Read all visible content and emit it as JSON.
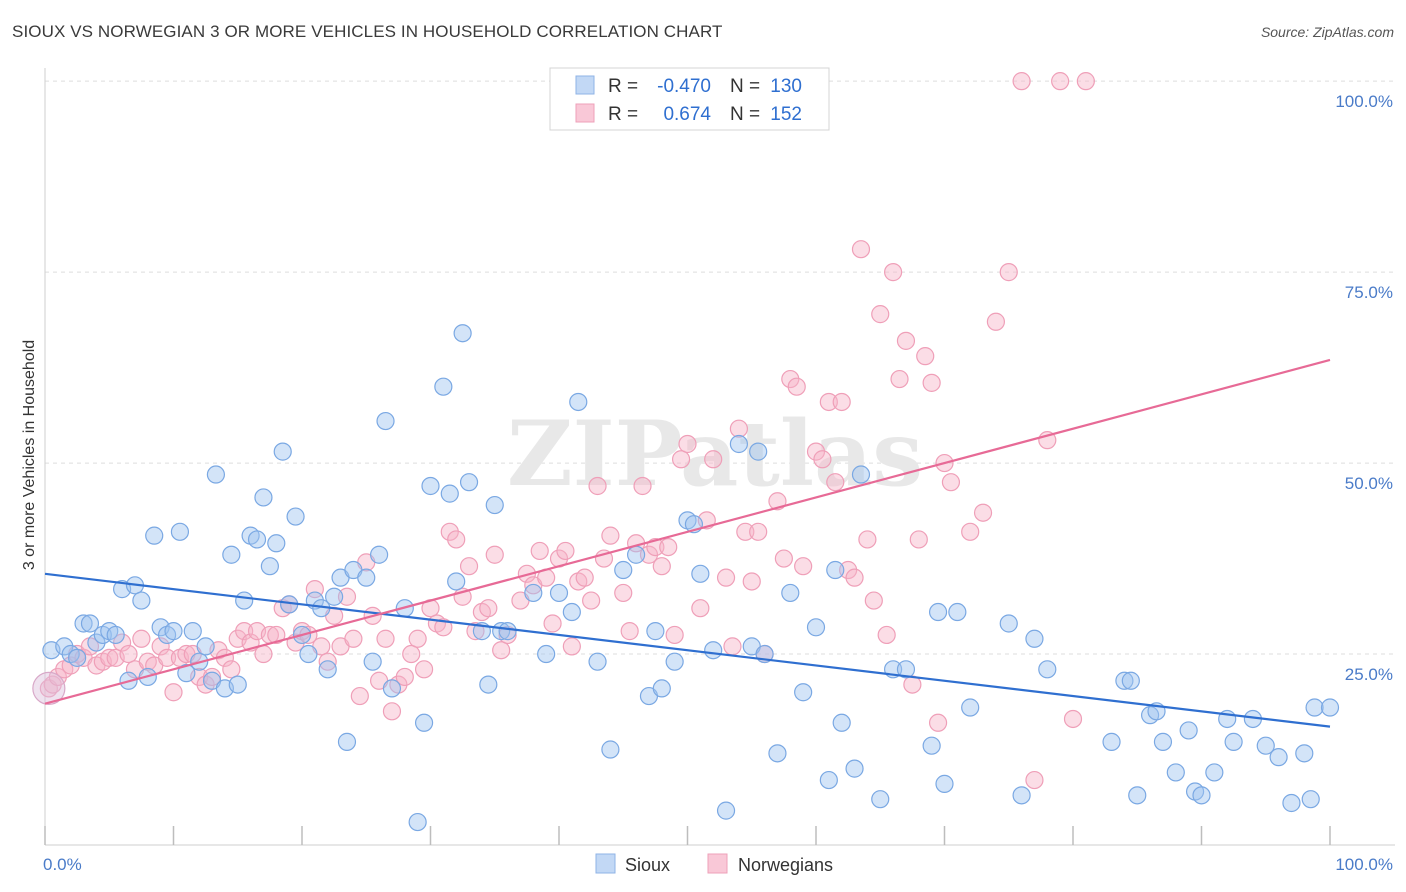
{
  "title": "SIOUX VS NORWEGIAN 3 OR MORE VEHICLES IN HOUSEHOLD CORRELATION CHART",
  "source": "Source: ZipAtlas.com",
  "watermark": "ZIPatlas",
  "chart_data": {
    "type": "scatter",
    "title": "SIOUX VS NORWEGIAN 3 OR MORE VEHICLES IN HOUSEHOLD CORRELATION CHART",
    "xlabel": "",
    "ylabel": "3 or more Vehicles in Household",
    "xlim": [
      0,
      100
    ],
    "ylim": [
      0,
      100
    ],
    "x_tick_labels": [
      "0.0%",
      "100.0%"
    ],
    "y_ticks": [
      25,
      50,
      75,
      100
    ],
    "y_tick_labels": [
      "25.0%",
      "50.0%",
      "75.0%",
      "100.0%"
    ],
    "grid": "horizontal dashed",
    "legend_position": "top-center",
    "series": [
      {
        "name": "Sioux",
        "color": "#9dc3f0",
        "line_color": "#2f6fd0",
        "R": "-0.470",
        "N": "130",
        "trend": [
          [
            0,
            35.5
          ],
          [
            100,
            15.5
          ]
        ],
        "points": [
          [
            0.5,
            25.5
          ],
          [
            1.5,
            26
          ],
          [
            2,
            25
          ],
          [
            2.5,
            24.5
          ],
          [
            3,
            29
          ],
          [
            3.5,
            29
          ],
          [
            4,
            26.5
          ],
          [
            4.5,
            27.5
          ],
          [
            5,
            28
          ],
          [
            5.5,
            27.5
          ],
          [
            6,
            33.5
          ],
          [
            6.5,
            21.5
          ],
          [
            7,
            34
          ],
          [
            7.5,
            32
          ],
          [
            8,
            22
          ],
          [
            8.5,
            40.5
          ],
          [
            9,
            28.5
          ],
          [
            9.5,
            27.5
          ],
          [
            10,
            28
          ],
          [
            10.5,
            41
          ],
          [
            11,
            22.5
          ],
          [
            11.5,
            28
          ],
          [
            12,
            24
          ],
          [
            12.5,
            26
          ],
          [
            13,
            21.5
          ],
          [
            13.3,
            48.5
          ],
          [
            14,
            20.5
          ],
          [
            14.5,
            38
          ],
          [
            15,
            21
          ],
          [
            15.5,
            32
          ],
          [
            16,
            40.5
          ],
          [
            16.5,
            40
          ],
          [
            17,
            45.5
          ],
          [
            17.5,
            36.5
          ],
          [
            18,
            39.5
          ],
          [
            18.5,
            51.5
          ],
          [
            19,
            31.5
          ],
          [
            19.5,
            43
          ],
          [
            20,
            27.5
          ],
          [
            20.5,
            25
          ],
          [
            21,
            32
          ],
          [
            21.5,
            31
          ],
          [
            22,
            23
          ],
          [
            22.5,
            32.5
          ],
          [
            23,
            35
          ],
          [
            23.5,
            13.5
          ],
          [
            24,
            36
          ],
          [
            25,
            35
          ],
          [
            25.5,
            24
          ],
          [
            26,
            38
          ],
          [
            26.5,
            55.5
          ],
          [
            27,
            20.5
          ],
          [
            28,
            31
          ],
          [
            29,
            3
          ],
          [
            29.5,
            16
          ],
          [
            30,
            47
          ],
          [
            31,
            60
          ],
          [
            31.5,
            46
          ],
          [
            32,
            34.5
          ],
          [
            32.5,
            67
          ],
          [
            33,
            47.5
          ],
          [
            34,
            28
          ],
          [
            34.5,
            21
          ],
          [
            35,
            44.5
          ],
          [
            35.5,
            28
          ],
          [
            36,
            28
          ],
          [
            38,
            33
          ],
          [
            39,
            25
          ],
          [
            40,
            33
          ],
          [
            41,
            30.5
          ],
          [
            41.5,
            58
          ],
          [
            43,
            24
          ],
          [
            44,
            12.5
          ],
          [
            45,
            36
          ],
          [
            46,
            38
          ],
          [
            47,
            19.5
          ],
          [
            47.5,
            28
          ],
          [
            48,
            20.5
          ],
          [
            49,
            24
          ],
          [
            50,
            42.5
          ],
          [
            50.5,
            42
          ],
          [
            51,
            35.5
          ],
          [
            52,
            25.5
          ],
          [
            53,
            4.5
          ],
          [
            54,
            52.5
          ],
          [
            55,
            26
          ],
          [
            55.5,
            51.5
          ],
          [
            56,
            25
          ],
          [
            57,
            12
          ],
          [
            58,
            33
          ],
          [
            59,
            20
          ],
          [
            60,
            28.5
          ],
          [
            61,
            8.5
          ],
          [
            61.5,
            36
          ],
          [
            62,
            16
          ],
          [
            63,
            10
          ],
          [
            63.5,
            48.5
          ],
          [
            65,
            6
          ],
          [
            66,
            23
          ],
          [
            67,
            23
          ],
          [
            69,
            13
          ],
          [
            69.5,
            30.5
          ],
          [
            70,
            8
          ],
          [
            71,
            30.5
          ],
          [
            72,
            18
          ],
          [
            75,
            29
          ],
          [
            76,
            6.5
          ],
          [
            77,
            27
          ],
          [
            78,
            23
          ],
          [
            83,
            13.5
          ],
          [
            84,
            21.5
          ],
          [
            84.5,
            21.5
          ],
          [
            85,
            6.5
          ],
          [
            86,
            17
          ],
          [
            86.5,
            17.5
          ],
          [
            87,
            13.5
          ],
          [
            88,
            9.5
          ],
          [
            89,
            15
          ],
          [
            89.5,
            7
          ],
          [
            90,
            6.5
          ],
          [
            91,
            9.5
          ],
          [
            92,
            16.5
          ],
          [
            92.5,
            13.5
          ],
          [
            94,
            16.5
          ],
          [
            95,
            13
          ],
          [
            96,
            11.5
          ],
          [
            97,
            5.5
          ],
          [
            98,
            12
          ],
          [
            98.5,
            6
          ],
          [
            98.8,
            18
          ],
          [
            100,
            18
          ]
        ]
      },
      {
        "name": "Norwegians",
        "color": "#f7b3c7",
        "line_color": "#e76a96",
        "R": "0.674",
        "N": "152",
        "trend": [
          [
            0,
            18.5
          ],
          [
            100,
            63.5
          ]
        ],
        "points": [
          [
            0.3,
            20.5
          ],
          [
            0.6,
            21
          ],
          [
            1,
            22
          ],
          [
            1.5,
            23
          ],
          [
            2,
            23.5
          ],
          [
            2.5,
            25
          ],
          [
            3,
            24.5
          ],
          [
            3.5,
            26
          ],
          [
            4,
            23.5
          ],
          [
            4.5,
            24
          ],
          [
            5,
            24.5
          ],
          [
            5.5,
            24.5
          ],
          [
            6,
            26.5
          ],
          [
            6.5,
            25
          ],
          [
            7,
            23
          ],
          [
            7.5,
            27
          ],
          [
            8,
            24
          ],
          [
            8.5,
            23.5
          ],
          [
            9,
            26
          ],
          [
            9.5,
            24.5
          ],
          [
            10,
            20
          ],
          [
            10.5,
            24.5
          ],
          [
            11,
            25
          ],
          [
            11.5,
            25
          ],
          [
            12,
            22
          ],
          [
            12.5,
            21
          ],
          [
            13,
            22
          ],
          [
            13.5,
            25.5
          ],
          [
            14,
            24.5
          ],
          [
            14.5,
            23
          ],
          [
            15,
            27
          ],
          [
            15.5,
            28
          ],
          [
            16,
            26.5
          ],
          [
            16.5,
            28
          ],
          [
            17,
            25
          ],
          [
            17.5,
            27.5
          ],
          [
            18,
            27.5
          ],
          [
            18.5,
            31
          ],
          [
            19,
            31.5
          ],
          [
            19.5,
            26.5
          ],
          [
            20,
            28
          ],
          [
            20.5,
            27.5
          ],
          [
            21,
            33.5
          ],
          [
            21.5,
            26
          ],
          [
            22,
            24
          ],
          [
            22.5,
            30
          ],
          [
            23,
            26
          ],
          [
            23.5,
            32.5
          ],
          [
            24,
            27
          ],
          [
            24.5,
            19.5
          ],
          [
            25,
            37
          ],
          [
            25.5,
            30
          ],
          [
            26,
            21.5
          ],
          [
            26.5,
            27
          ],
          [
            27,
            17.5
          ],
          [
            27.5,
            21
          ],
          [
            28,
            22
          ],
          [
            28.5,
            25
          ],
          [
            29,
            27
          ],
          [
            29.5,
            23
          ],
          [
            30,
            31
          ],
          [
            30.5,
            29
          ],
          [
            31,
            28.5
          ],
          [
            31.5,
            41
          ],
          [
            32,
            40
          ],
          [
            32.5,
            32.5
          ],
          [
            33,
            36.5
          ],
          [
            33.5,
            28
          ],
          [
            34,
            30.5
          ],
          [
            34.5,
            31
          ],
          [
            35,
            38
          ],
          [
            35.5,
            25.5
          ],
          [
            36,
            27.5
          ],
          [
            37,
            32
          ],
          [
            37.5,
            35.5
          ],
          [
            38,
            34
          ],
          [
            38.5,
            38.5
          ],
          [
            39,
            35
          ],
          [
            39.5,
            29
          ],
          [
            40,
            37.5
          ],
          [
            40.5,
            38.5
          ],
          [
            41,
            26
          ],
          [
            41.5,
            34.5
          ],
          [
            42,
            35
          ],
          [
            42.5,
            32
          ],
          [
            43,
            47
          ],
          [
            43.5,
            37.5
          ],
          [
            44,
            40.5
          ],
          [
            45,
            33
          ],
          [
            45.5,
            28
          ],
          [
            46,
            39.5
          ],
          [
            46.5,
            47
          ],
          [
            47,
            38
          ],
          [
            47.5,
            39
          ],
          [
            48,
            36.5
          ],
          [
            48.5,
            39
          ],
          [
            49,
            27.5
          ],
          [
            49.5,
            50.5
          ],
          [
            50,
            52.5
          ],
          [
            51,
            31
          ],
          [
            51.5,
            42.5
          ],
          [
            52,
            50.5
          ],
          [
            53,
            35
          ],
          [
            53.5,
            26
          ],
          [
            54,
            54.5
          ],
          [
            54.5,
            41
          ],
          [
            55,
            34.5
          ],
          [
            55.5,
            41
          ],
          [
            56,
            25
          ],
          [
            57,
            45
          ],
          [
            57.5,
            37.5
          ],
          [
            58,
            61
          ],
          [
            58.5,
            60
          ],
          [
            59,
            36.5
          ],
          [
            60,
            51.5
          ],
          [
            60.5,
            50.5
          ],
          [
            61,
            58
          ],
          [
            61.5,
            47.5
          ],
          [
            62,
            58
          ],
          [
            62.5,
            36
          ],
          [
            63,
            35
          ],
          [
            63.5,
            78
          ],
          [
            64,
            40
          ],
          [
            64.5,
            32
          ],
          [
            65,
            69.5
          ],
          [
            65.5,
            27.5
          ],
          [
            66,
            75
          ],
          [
            66.5,
            61
          ],
          [
            67,
            66
          ],
          [
            67.5,
            21
          ],
          [
            68,
            40
          ],
          [
            68.5,
            64
          ],
          [
            69,
            60.5
          ],
          [
            69.5,
            16
          ],
          [
            70,
            50
          ],
          [
            70.5,
            47.5
          ],
          [
            72,
            41
          ],
          [
            73,
            43.5
          ],
          [
            74,
            68.5
          ],
          [
            75,
            75
          ],
          [
            76,
            100
          ],
          [
            77,
            8.5
          ],
          [
            78,
            53
          ],
          [
            79,
            100
          ],
          [
            80,
            16.5
          ],
          [
            81,
            100
          ]
        ]
      }
    ]
  },
  "legend": {
    "r_label": "R =",
    "n_label": "N =",
    "rows": [
      {
        "r": "-0.470",
        "n": "130"
      },
      {
        "r": "0.674",
        "n": "152"
      }
    ]
  },
  "bottom_legend": [
    "Sioux",
    "Norwegians"
  ]
}
